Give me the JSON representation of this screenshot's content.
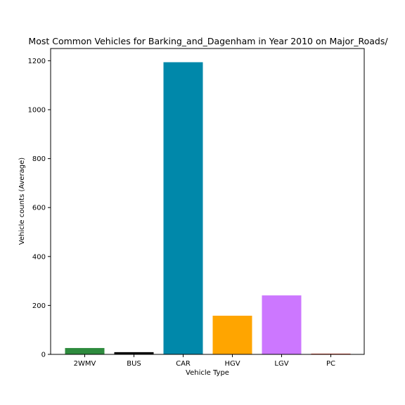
{
  "chart_data": {
    "type": "bar",
    "title": "Most Common Vehicles for Barking_and_Dagenham in Year 2010 on Major_Roads/",
    "xlabel": "Vehicle Type",
    "ylabel": "Vehicle counts (Average)",
    "categories": [
      "2WMV",
      "BUS",
      "CAR",
      "HGV",
      "LGV",
      "PC"
    ],
    "values": [
      26,
      9,
      1194,
      158,
      241,
      3
    ],
    "colors": [
      "#2e8b3e",
      "#000000",
      "#0088aa",
      "#ffa500",
      "#cc77ff",
      "#e04a2f"
    ],
    "ylim": [
      0,
      1250
    ],
    "yticks": [
      0,
      200,
      400,
      600,
      800,
      1000,
      1200
    ],
    "grid": false,
    "legend": "none"
  }
}
